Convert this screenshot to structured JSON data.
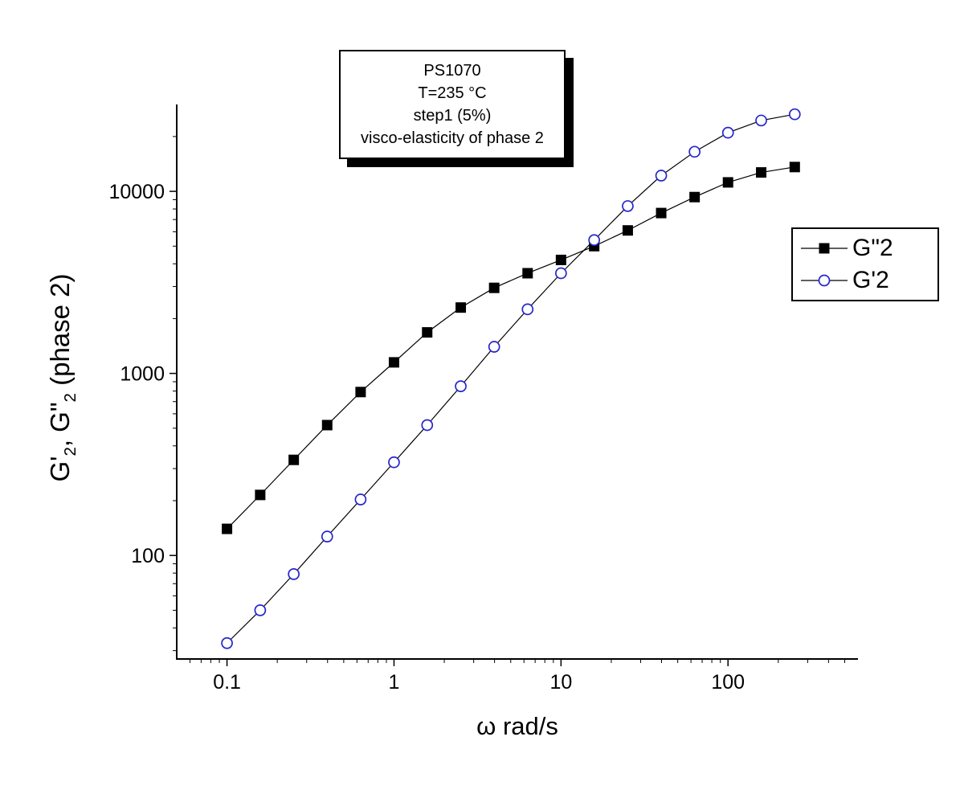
{
  "page": {
    "background": "#ffffff"
  },
  "chart_data": {
    "type": "line",
    "x_scale": "log",
    "y_scale": "log",
    "grid": false,
    "legend_position": "right",
    "xlim": [
      0.05,
      600
    ],
    "ylim": [
      27,
      30000
    ],
    "x_ticks": [
      0.1,
      1,
      10,
      100
    ],
    "x_tick_labels": [
      "0.1",
      "1",
      "10",
      "100"
    ],
    "y_ticks": [
      100,
      1000,
      10000
    ],
    "y_tick_labels": [
      "100",
      "1000",
      "10000"
    ],
    "xlabel": "ω rad/s",
    "ylabel": "G'2, G\"2 (phase 2)",
    "ylabel_parts": {
      "p1": "G'",
      "s1": "2",
      "p2": ", G\"",
      "s2": "2",
      "p3": "  (phase 2)"
    },
    "annotation_lines": [
      "PS1070",
      "T=235 °C",
      "step1 (5%)",
      "visco-elasticity of phase 2"
    ],
    "x": [
      0.1,
      0.158,
      0.251,
      0.398,
      0.631,
      1,
      1.58,
      2.51,
      3.98,
      6.31,
      10,
      15.8,
      25.1,
      39.8,
      63.1,
      100,
      158,
      251
    ],
    "series": [
      {
        "name": "G\"2",
        "marker": "square",
        "marker_fill": "#000000",
        "marker_edge": "#000000",
        "line_color": "#000000",
        "values": [
          140,
          215,
          335,
          520,
          790,
          1150,
          1680,
          2300,
          2950,
          3550,
          4200,
          5000,
          6100,
          7600,
          9300,
          11200,
          12700,
          13600
        ]
      },
      {
        "name": "G'2",
        "marker": "circle-open",
        "marker_fill": "#ffffff",
        "marker_edge": "#2626cc",
        "line_color": "#000000",
        "values": [
          33,
          50,
          79,
          127,
          203,
          325,
          520,
          850,
          1400,
          2250,
          3550,
          5400,
          8300,
          12200,
          16500,
          21000,
          24500,
          26500
        ]
      }
    ]
  }
}
